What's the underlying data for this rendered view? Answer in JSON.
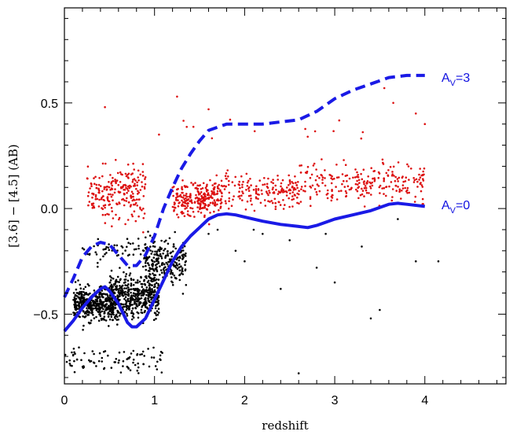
{
  "chart_data": {
    "type": "scatter",
    "title": "",
    "xlabel": "redshift",
    "ylabel": "[3.6] − [4.5] (AB)",
    "xlim": [
      0,
      4.9
    ],
    "ylim": [
      -0.83,
      0.95
    ],
    "xticks": [
      0,
      1,
      2,
      3,
      4
    ],
    "yticks": [
      -0.5,
      0.0,
      0.5
    ],
    "ytick_labels": [
      "−0.5",
      "0.0",
      "0.5"
    ],
    "grid": false,
    "colors": {
      "black_points": "#000000",
      "red_points": "#dd1111",
      "curves": "#1a1ae6"
    },
    "series": [
      {
        "kind": "line",
        "style": "solid",
        "label_main": "A",
        "label_sub": "V",
        "label_rest": "=0",
        "x": [
          0.0,
          0.1,
          0.2,
          0.3,
          0.4,
          0.45,
          0.5,
          0.6,
          0.7,
          0.75,
          0.8,
          0.9,
          1.0,
          1.1,
          1.2,
          1.3,
          1.4,
          1.5,
          1.6,
          1.7,
          1.8,
          1.9,
          2.0,
          2.2,
          2.4,
          2.6,
          2.7,
          2.8,
          3.0,
          3.2,
          3.4,
          3.6,
          3.7,
          3.8,
          4.0
        ],
        "y": [
          -0.58,
          -0.53,
          -0.47,
          -0.42,
          -0.38,
          -0.37,
          -0.39,
          -0.45,
          -0.54,
          -0.56,
          -0.56,
          -0.52,
          -0.43,
          -0.34,
          -0.25,
          -0.18,
          -0.13,
          -0.09,
          -0.05,
          -0.03,
          -0.025,
          -0.03,
          -0.04,
          -0.06,
          -0.075,
          -0.085,
          -0.09,
          -0.08,
          -0.05,
          -0.03,
          -0.01,
          0.02,
          0.025,
          0.02,
          0.01
        ]
      },
      {
        "kind": "line",
        "style": "dashed",
        "label_main": "A",
        "label_sub": "V",
        "label_rest": "=3",
        "x": [
          0.0,
          0.1,
          0.2,
          0.3,
          0.4,
          0.5,
          0.6,
          0.7,
          0.8,
          0.9,
          1.0,
          1.1,
          1.2,
          1.3,
          1.4,
          1.5,
          1.6,
          1.8,
          2.0,
          2.2,
          2.4,
          2.6,
          2.8,
          3.0,
          3.2,
          3.4,
          3.6,
          3.8,
          4.0
        ],
        "y": [
          -0.42,
          -0.33,
          -0.23,
          -0.18,
          -0.16,
          -0.17,
          -0.22,
          -0.27,
          -0.27,
          -0.22,
          -0.13,
          0.0,
          0.1,
          0.19,
          0.26,
          0.32,
          0.37,
          0.4,
          0.4,
          0.4,
          0.41,
          0.42,
          0.46,
          0.52,
          0.56,
          0.59,
          0.62,
          0.63,
          0.63
        ]
      },
      {
        "kind": "scatter",
        "color": "black",
        "clusters": [
          {
            "x": [
              0.1,
              0.55
            ],
            "y": [
              -0.6,
              -0.3
            ],
            "n": 420
          },
          {
            "x": [
              0.5,
              1.05
            ],
            "y": [
              -0.62,
              -0.22
            ],
            "n": 520
          },
          {
            "x": [
              0.9,
              1.35
            ],
            "y": [
              -0.45,
              -0.05
            ],
            "n": 220
          },
          {
            "x": [
              0.0,
              1.1
            ],
            "y": [
              -0.83,
              -0.6
            ],
            "n": 90
          },
          {
            "x": [
              0.2,
              0.9
            ],
            "y": [
              -0.3,
              -0.1
            ],
            "n": 60
          }
        ],
        "outliers": [
          [
            1.6,
            -0.12
          ],
          [
            1.9,
            -0.2
          ],
          [
            2.0,
            -0.25
          ],
          [
            2.2,
            -0.12
          ],
          [
            2.5,
            -0.15
          ],
          [
            2.8,
            -0.28
          ],
          [
            2.9,
            -0.12
          ],
          [
            3.0,
            -0.35
          ],
          [
            3.3,
            -0.18
          ],
          [
            3.4,
            -0.52
          ],
          [
            3.5,
            -0.48
          ],
          [
            3.9,
            -0.25
          ],
          [
            4.15,
            -0.25
          ],
          [
            2.6,
            -0.78
          ],
          [
            2.4,
            -0.38
          ],
          [
            1.7,
            -0.1
          ],
          [
            3.7,
            -0.05
          ],
          [
            1.2,
            -0.35
          ],
          [
            1.3,
            -0.2
          ],
          [
            2.1,
            -0.1
          ]
        ]
      },
      {
        "kind": "scatter",
        "color": "red",
        "clusters": [
          {
            "x": [
              0.25,
              0.9
            ],
            "y": [
              -0.15,
              0.3
            ],
            "n": 230
          },
          {
            "x": [
              1.2,
              1.75
            ],
            "y": [
              -0.1,
              0.2
            ],
            "n": 260
          },
          {
            "x": [
              1.75,
              2.6
            ],
            "y": [
              -0.08,
              0.25
            ],
            "n": 170
          },
          {
            "x": [
              2.6,
              4.0
            ],
            "y": [
              -0.05,
              0.3
            ],
            "n": 240
          },
          {
            "x": [
              1.3,
              3.6
            ],
            "y": [
              0.25,
              0.5
            ],
            "n": 12
          }
        ],
        "outliers": [
          [
            1.25,
            0.53
          ],
          [
            1.6,
            0.47
          ],
          [
            0.45,
            0.48
          ],
          [
            3.55,
            0.57
          ],
          [
            3.65,
            0.5
          ],
          [
            3.9,
            0.45
          ],
          [
            4.0,
            0.4
          ],
          [
            2.7,
            0.34
          ],
          [
            1.05,
            0.35
          ]
        ]
      }
    ]
  }
}
